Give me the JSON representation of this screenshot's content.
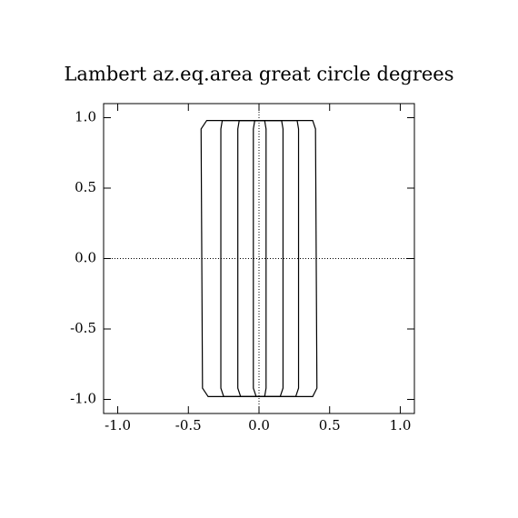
{
  "chart_data": {
    "type": "contour",
    "title": "Lambert az.eq.area great circle degrees",
    "xlim": [
      -1.1,
      1.1
    ],
    "ylim": [
      -1.1,
      1.1
    ],
    "xticks": [
      {
        "value": -1,
        "label": "-1.0"
      },
      -0.5,
      {
        "value": 0,
        "label": "0.0"
      },
      0.5,
      {
        "value": 1,
        "label": "1.0"
      }
    ],
    "yticks": [
      {
        "value": -1,
        "label": "-1.0"
      },
      -0.5,
      {
        "value": 0,
        "label": "0.0"
      },
      0.5,
      {
        "value": 1,
        "label": "1.0"
      }
    ],
    "zero_lines": true,
    "series": [
      {
        "color": "#000000",
        "x": [
          -0.37,
          0.38,
          0.4,
          0.41,
          0.38,
          -0.36,
          -0.4,
          -0.41
        ],
        "y": [
          0.98,
          0.98,
          0.92,
          -0.92,
          -0.98,
          -0.98,
          -0.92,
          0.92
        ]
      },
      {
        "color": "#000000",
        "x": [
          -0.26,
          0.27,
          0.28,
          0.28,
          0.26,
          -0.25,
          -0.27,
          -0.27
        ],
        "y": [
          0.98,
          0.98,
          0.92,
          -0.92,
          -0.98,
          -0.98,
          -0.92,
          0.92
        ]
      },
      {
        "color": "#000000",
        "x": [
          -0.14,
          0.16,
          0.17,
          0.17,
          0.15,
          -0.13,
          -0.15,
          -0.15
        ],
        "y": [
          0.98,
          0.98,
          0.92,
          -0.92,
          -0.98,
          -0.98,
          -0.92,
          0.92
        ]
      },
      {
        "color": "#000000",
        "x": [
          -0.03,
          0.04,
          0.05,
          0.05,
          0.04,
          -0.02,
          -0.04,
          -0.04
        ],
        "y": [
          0.98,
          0.98,
          0.92,
          -0.92,
          -0.98,
          -0.98,
          -0.92,
          0.92
        ]
      }
    ]
  }
}
